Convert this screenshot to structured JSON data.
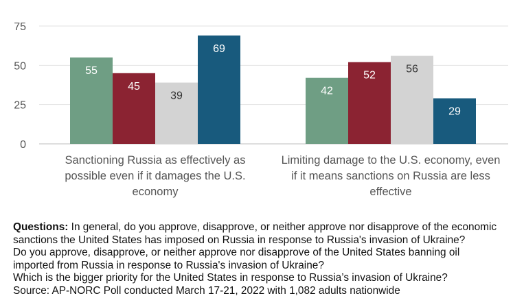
{
  "chart_data": {
    "type": "bar",
    "categories": [
      "Sanctioning Russia as effectively as possible even if it damages the U.S. economy",
      "Limiting damage to the U.S. economy, even if it means sanctions on Russia are less effective"
    ],
    "category_lines": [
      [
        "Sanctioning Russia as effectively as",
        "possible even if it damages the U.S.",
        "economy"
      ],
      [
        "Limiting damage to the U.S. economy, even",
        "if it means sanctions on Russia are less",
        "effective"
      ]
    ],
    "series": [
      {
        "color": "#6f9e84",
        "label_color": "#ffffff",
        "values": [
          55,
          42
        ]
      },
      {
        "color": "#8b2332",
        "label_color": "#ffffff",
        "values": [
          45,
          52
        ]
      },
      {
        "color": "#d3d3d3",
        "label_color": "#333333",
        "values": [
          39,
          56
        ]
      },
      {
        "color": "#185a7d",
        "label_color": "#ffffff",
        "values": [
          69,
          29
        ]
      }
    ],
    "ylim": [
      0,
      75
    ],
    "yticks": [
      0,
      25,
      50,
      75
    ],
    "grid": true
  },
  "notes": {
    "label": "Questions:",
    "lines": [
      " In general, do you approve, disapprove, or neither approve nor disapprove of the economic",
      "sanctions the United States has imposed on Russia in response to Russia's invasion of Ukraine?",
      "Do you approve, disapprove, or neither approve nor disapprove of the United States banning oil",
      "imported from Russia in response to Russia's invasion of Ukraine?",
      "Which is the bigger priority for the United States in response to Russia’s invasion of Ukraine?",
      "Source: AP-NORC Poll conducted March 17-21, 2022 with 1,082 adults nationwide"
    ]
  }
}
